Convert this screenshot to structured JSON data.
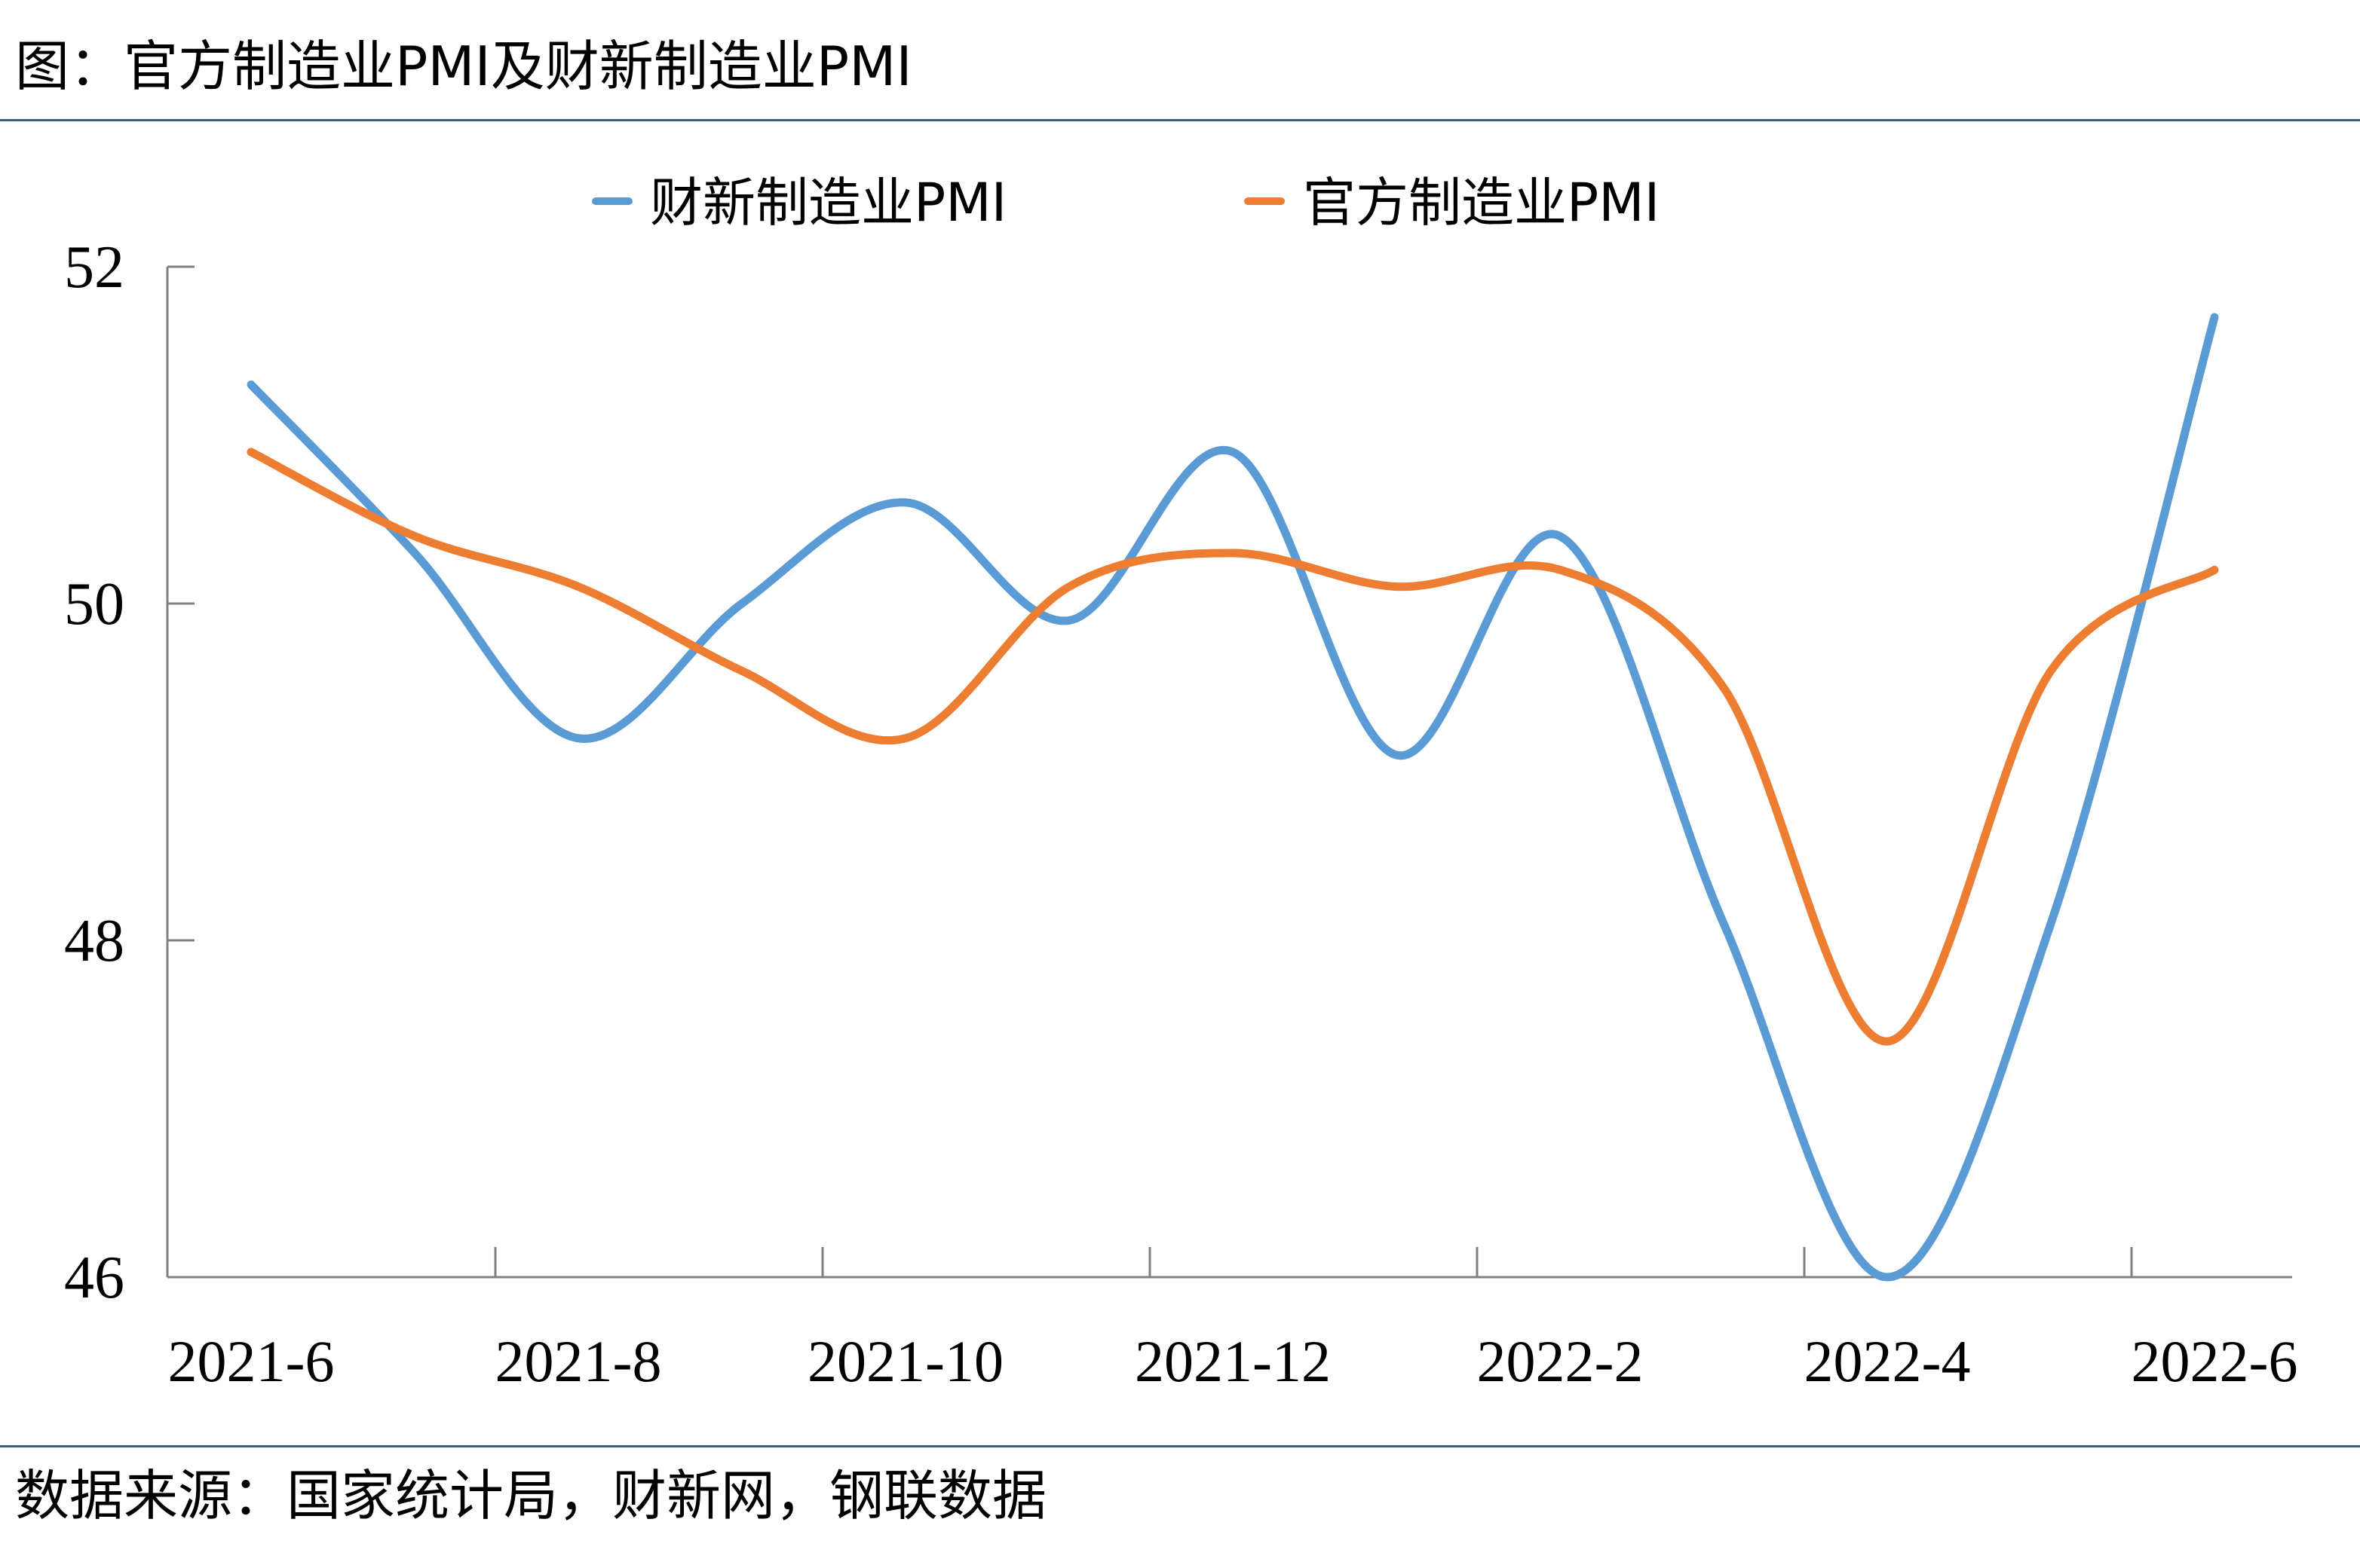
{
  "figure_title": "图：官方制造业PMI及财新制造业PMI",
  "source": "数据来源：国家统计局，财新网，钢联数据",
  "chart_data": {
    "type": "line",
    "title": "",
    "xlabel": "",
    "ylabel": "",
    "categories": [
      "2021-6",
      "2021-7",
      "2021-8",
      "2021-9",
      "2021-10",
      "2021-11",
      "2021-12",
      "2022-1",
      "2022-2",
      "2022-3",
      "2022-4",
      "2022-5",
      "2022-6"
    ],
    "x_tick_labels": [
      "2021-6",
      "2021-8",
      "2021-10",
      "2021-12",
      "2022-2",
      "2022-4",
      "2022-6"
    ],
    "ylim": [
      46,
      52
    ],
    "y_ticks": [
      46,
      48,
      50,
      52
    ],
    "grid": false,
    "legend_position": "top-center",
    "series": [
      {
        "name": "财新制造业PMI",
        "color": "#5b9bd5",
        "values": [
          51.3,
          50.3,
          49.2,
          50.0,
          50.6,
          49.9,
          50.9,
          49.1,
          50.4,
          48.1,
          46.0,
          48.1,
          51.7
        ]
      },
      {
        "name": "官方制造业PMI",
        "color": "#ed7d31",
        "values": [
          50.9,
          50.4,
          50.1,
          49.6,
          49.2,
          50.1,
          50.3,
          50.1,
          50.2,
          49.5,
          47.4,
          49.6,
          50.2
        ]
      }
    ]
  }
}
